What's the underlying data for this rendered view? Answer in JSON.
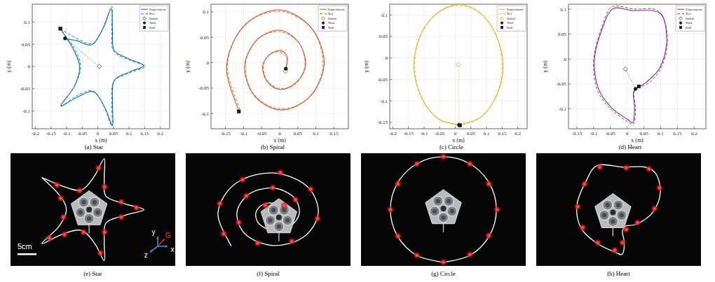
{
  "chart_data": [
    {
      "type": "line",
      "title": "(a) Star",
      "xlabel": "x (m)",
      "ylabel": "y (m)",
      "xlim": [
        -0.21,
        0.23
      ],
      "ylim": [
        -0.14,
        0.14
      ],
      "xticks": [
        -0.2,
        -0.15,
        -0.1,
        -0.05,
        0,
        0.05,
        0.1,
        0.15,
        0.2
      ],
      "yticks": [
        -0.1,
        -0.05,
        0,
        0.05,
        0.1
      ],
      "grid": true,
      "legend": "upper right",
      "series": [
        {
          "name": "Experiment",
          "type": "line",
          "color": "#0072bd",
          "line_style": "solid",
          "x": [
            -0.105,
            -0.068,
            -0.018,
            0.018,
            0.043,
            0.047,
            0.052,
            0.1,
            0.148,
            0.102,
            0.052,
            0.047,
            0.047,
            0.022,
            -0.013,
            -0.063,
            -0.118,
            -0.077,
            -0.058,
            -0.078,
            -0.12
          ],
          "values": [
            0.063,
            0.058,
            0.049,
            0.088,
            0.131,
            0.082,
            0.037,
            0.017,
            0.002,
            -0.012,
            -0.032,
            -0.082,
            -0.132,
            -0.092,
            -0.057,
            -0.068,
            -0.088,
            -0.047,
            -0.003,
            0.038,
            0.085
          ]
        },
        {
          "name": "Ref",
          "type": "line",
          "color": "#0072bd",
          "line_style": "dashed",
          "x": [
            -0.12,
            -0.065,
            -0.015,
            0.02,
            0.045,
            0.045,
            0.05,
            0.1,
            0.15,
            0.1,
            0.05,
            0.045,
            0.045,
            0.02,
            -0.015,
            -0.065,
            -0.12,
            -0.075,
            -0.055,
            -0.075,
            -0.12
          ],
          "values": [
            0.085,
            0.062,
            0.052,
            0.09,
            0.135,
            0.08,
            0.035,
            0.015,
            0,
            -0.015,
            -0.035,
            -0.085,
            -0.135,
            -0.09,
            -0.055,
            -0.065,
            -0.09,
            -0.045,
            0,
            0.04,
            0.085
          ]
        },
        {
          "name": "Initial",
          "type": "scatter",
          "color": "#0072bd",
          "marker": "diamond",
          "line_style": "dotted",
          "x": [
            0.005
          ],
          "values": [
            0
          ]
        },
        {
          "name": "Start",
          "type": "scatter",
          "color": "#1a1a1a",
          "marker": "circle",
          "x": [
            -0.105
          ],
          "values": [
            0.063
          ]
        },
        {
          "name": "End",
          "type": "scatter",
          "color": "#1a1a1a",
          "marker": "square",
          "x": [
            -0.12
          ],
          "values": [
            0.085
          ]
        }
      ]
    },
    {
      "type": "line",
      "title": "(b) Spiral",
      "xlabel": "x (m)",
      "ylabel": "y (m)",
      "xlim": [
        -0.19,
        0.19
      ],
      "ylim": [
        -0.13,
        0.115
      ],
      "xticks": [
        -0.15,
        -0.1,
        -0.05,
        0,
        0.05,
        0.1,
        0.15
      ],
      "yticks": [
        -0.1,
        -0.05,
        0,
        0.05,
        0.1
      ],
      "grid": true,
      "legend": "upper right",
      "series": [
        {
          "name": "Experiment",
          "type": "line",
          "color": "#d95319",
          "line_style": "solid",
          "x": [
            0.017,
            0.021,
            0.002,
            -0.029,
            -0.047,
            -0.035,
            0.002,
            0.047,
            0.072,
            0.051,
            -0.002,
            -0.065,
            -0.097,
            -0.07,
            0.003,
            0.083,
            0.123,
            0.087,
            -0.003,
            -0.1,
            -0.147,
            -0.113
          ],
          "values": [
            -0.012,
            0.011,
            0.024,
            0.015,
            -0.007,
            -0.037,
            -0.053,
            -0.038,
            -0.003,
            0.041,
            0.064,
            0.043,
            -0.008,
            -0.065,
            -0.093,
            -0.067,
            -0.002,
            0.069,
            0.104,
            0.071,
            -0.008,
            -0.096
          ]
        },
        {
          "name": "Ref",
          "type": "line",
          "color": "#d95319",
          "line_style": "dashed",
          "x": [
            0.02,
            0.0186,
            0,
            -0.0274,
            -0.045,
            -0.0362,
            0,
            0.0451,
            0.07,
            0.0539,
            0,
            -0.0628,
            -0.095,
            -0.0716,
            0,
            0.0804,
            0.12,
            0.0893,
            0,
            -0.0981,
            -0.145,
            -0.11
          ],
          "values": [
            -0.005,
            0.0098,
            0.021,
            0.0169,
            -0.005,
            -0.034,
            -0.051,
            -0.0411,
            -0.005,
            0.0381,
            0.061,
            0.0452,
            -0.005,
            -0.0623,
            -0.091,
            -0.0693,
            -0.005,
            0.0664,
            0.101,
            0.0735,
            -0.005,
            -0.093
          ]
        },
        {
          "name": "Initial",
          "type": "scatter",
          "color": "#d95319",
          "marker": "diamond",
          "line_style": "dotted",
          "x": [
            0.016
          ],
          "values": [
            -0.017
          ]
        },
        {
          "name": "Start",
          "type": "scatter",
          "color": "#1a1a1a",
          "marker": "circle",
          "x": [
            0.017
          ],
          "values": [
            -0.012
          ]
        },
        {
          "name": "End",
          "type": "scatter",
          "color": "#1a1a1a",
          "marker": "square",
          "x": [
            -0.113
          ],
          "values": [
            -0.096
          ]
        }
      ]
    },
    {
      "type": "line",
      "title": "(c) Circle",
      "xlabel": "x (m)",
      "ylabel": "y (m)",
      "xlim": [
        -0.21,
        0.23
      ],
      "ylim": [
        -0.165,
        0.125
      ],
      "xticks": [
        -0.2,
        -0.15,
        -0.1,
        -0.05,
        0,
        0.05,
        0.1,
        0.15,
        0.2
      ],
      "yticks": [
        -0.15,
        -0.1,
        -0.05,
        0,
        0.05,
        0.1
      ],
      "grid": true,
      "legend": "upper right",
      "series": [
        {
          "name": "Experiment",
          "type": "line",
          "color": "#edb120",
          "line_style": "solid",
          "x": [
            0.012,
            0.083,
            0.134,
            0.153,
            0.129,
            0.077,
            0.008,
            -0.063,
            -0.114,
            -0.133,
            -0.109,
            -0.057,
            0.012
          ],
          "values": [
            -0.156,
            -0.137,
            -0.085,
            -0.015,
            0.055,
            0.106,
            0.124,
            0.101,
            0.049,
            -0.021,
            -0.091,
            -0.141,
            -0.156
          ]
        },
        {
          "name": "Ref",
          "type": "line",
          "color": "#edb120",
          "line_style": "dashed",
          "x": [
            0.01,
            0.08,
            0.1312,
            0.15,
            0.1312,
            0.08,
            0.01,
            -0.06,
            -0.1112,
            -0.13,
            -0.1112,
            -0.06,
            0.01
          ],
          "values": [
            -0.158,
            -0.1392,
            -0.088,
            -0.018,
            0.052,
            0.1032,
            0.122,
            0.1032,
            0.052,
            -0.018,
            -0.088,
            -0.1392,
            -0.158
          ]
        },
        {
          "name": "Initial",
          "type": "scatter",
          "color": "#edb120",
          "marker": "diamond",
          "line_style": "dotted",
          "x": [
            0.01
          ],
          "values": [
            -0.015
          ]
        },
        {
          "name": "Start",
          "type": "scatter",
          "color": "#1a1a1a",
          "marker": "circle",
          "x": [
            0.012
          ],
          "values": [
            -0.156
          ]
        },
        {
          "name": "End",
          "type": "scatter",
          "color": "#1a1a1a",
          "marker": "square",
          "x": [
            0.015
          ],
          "values": [
            -0.157
          ]
        }
      ]
    },
    {
      "type": "line",
      "title": "(d) Heart",
      "xlabel": "x (m)",
      "ylabel": "y (m)",
      "xlim": [
        -0.175,
        0.235
      ],
      "ylim": [
        -0.14,
        0.11
      ],
      "xticks": [
        -0.15,
        -0.1,
        -0.05,
        0,
        0.05,
        0.1,
        0.15,
        0.2
      ],
      "yticks": [
        -0.1,
        -0.05,
        0,
        0.05,
        0.1
      ],
      "grid": true,
      "legend": "upper right",
      "series": [
        {
          "name": "Experiment",
          "type": "line",
          "color": "#7e2f8e",
          "line_style": "solid",
          "x": [
            0.025,
            0.058,
            0.098,
            0.118,
            0.108,
            0.077,
            0.018,
            -0.042,
            -0.073,
            -0.097,
            -0.087,
            -0.048,
            0.001,
            0.018,
            0.022,
            0.019,
            0.035
          ],
          "values": [
            -0.06,
            -0.046,
            -0.017,
            0.033,
            0.083,
            0.097,
            0.097,
            0.101,
            0.063,
            0.003,
            -0.057,
            -0.097,
            -0.121,
            -0.127,
            -0.098,
            -0.067,
            -0.055
          ]
        },
        {
          "name": "Ref",
          "type": "line",
          "color": "#7e2f8e",
          "line_style": "dashed",
          "x": [
            0.03,
            0.06,
            0.1,
            0.12,
            0.11,
            0.08,
            0.02,
            -0.045,
            -0.075,
            -0.1,
            -0.09,
            -0.05,
            0,
            0.02,
            0.025,
            0.02,
            0.03
          ],
          "values": [
            -0.055,
            -0.05,
            -0.02,
            0.03,
            0.08,
            0.1,
            0.1,
            0.105,
            0.065,
            0,
            -0.06,
            -0.1,
            -0.125,
            -0.13,
            -0.1,
            -0.07,
            -0.055
          ]
        },
        {
          "name": "Initial",
          "type": "scatter",
          "color": "#7e2f8e",
          "marker": "diamond",
          "line_style": "dotted",
          "x": [
            -0.005
          ],
          "values": [
            -0.02
          ]
        },
        {
          "name": "Start",
          "type": "scatter",
          "color": "#1a1a1a",
          "marker": "circle",
          "x": [
            0.025
          ],
          "values": [
            -0.06
          ]
        },
        {
          "name": "End",
          "type": "scatter",
          "color": "#1a1a1a",
          "marker": "square",
          "x": [
            0.035
          ],
          "values": [
            -0.055
          ]
        }
      ]
    }
  ],
  "photos": [
    {
      "title": "(e) Star",
      "dots": {
        "x": [
          -0.08,
          -0.02,
          0.03,
          0.046,
          0.09,
          0.13,
          0.09,
          0.046,
          0.035,
          -0.01,
          -0.06,
          -0.1,
          -0.063,
          -0.07
        ],
        "y": [
          0.065,
          0.05,
          0.11,
          0.06,
          0.02,
          0.005,
          -0.02,
          -0.06,
          -0.115,
          -0.06,
          -0.066,
          -0.075,
          -0.02,
          0.03
        ]
      },
      "scale_bar": {
        "label": "5cm",
        "length": 0.05
      },
      "frame_labels": [
        "y",
        "G",
        "z",
        "x"
      ]
    },
    {
      "title": "(f) Spiral",
      "dots": {
        "x": [
          0.06,
          0,
          -0.07,
          -0.09,
          -0.04,
          0.05,
          0.118,
          0.1,
          0.02,
          -0.08,
          -0.14,
          -0.13,
          0.03,
          -0.02
        ],
        "y": [
          0.03,
          0.062,
          0.04,
          -0.03,
          -0.085,
          -0.08,
          -0.02,
          0.058,
          0.102,
          0.083,
          0.02,
          -0.06,
          0.015,
          0.015
        ]
      }
    },
    {
      "title": "(g) Circle",
      "dots": {
        "x": [
          0.08,
          0.13,
          0.152,
          0.13,
          0.08,
          0.01,
          -0.06,
          -0.11,
          -0.13,
          -0.11,
          -0.06,
          0.01
        ],
        "y": [
          -0.137,
          -0.087,
          -0.018,
          0.05,
          0.103,
          0.122,
          0.103,
          0.05,
          -0.018,
          -0.088,
          -0.139,
          -0.157
        ]
      }
    },
    {
      "title": "(h) Heart",
      "dots": {
        "x": [
          0.06,
          0.105,
          0.118,
          0.09,
          0.03,
          -0.04,
          -0.08,
          -0.098,
          -0.085,
          -0.045,
          0,
          0.02,
          0.03
        ],
        "y": [
          -0.047,
          -0.01,
          0.045,
          0.095,
          0.098,
          0.1,
          0.055,
          -0.005,
          -0.06,
          -0.1,
          -0.12,
          -0.1,
          -0.065
        ]
      }
    }
  ]
}
